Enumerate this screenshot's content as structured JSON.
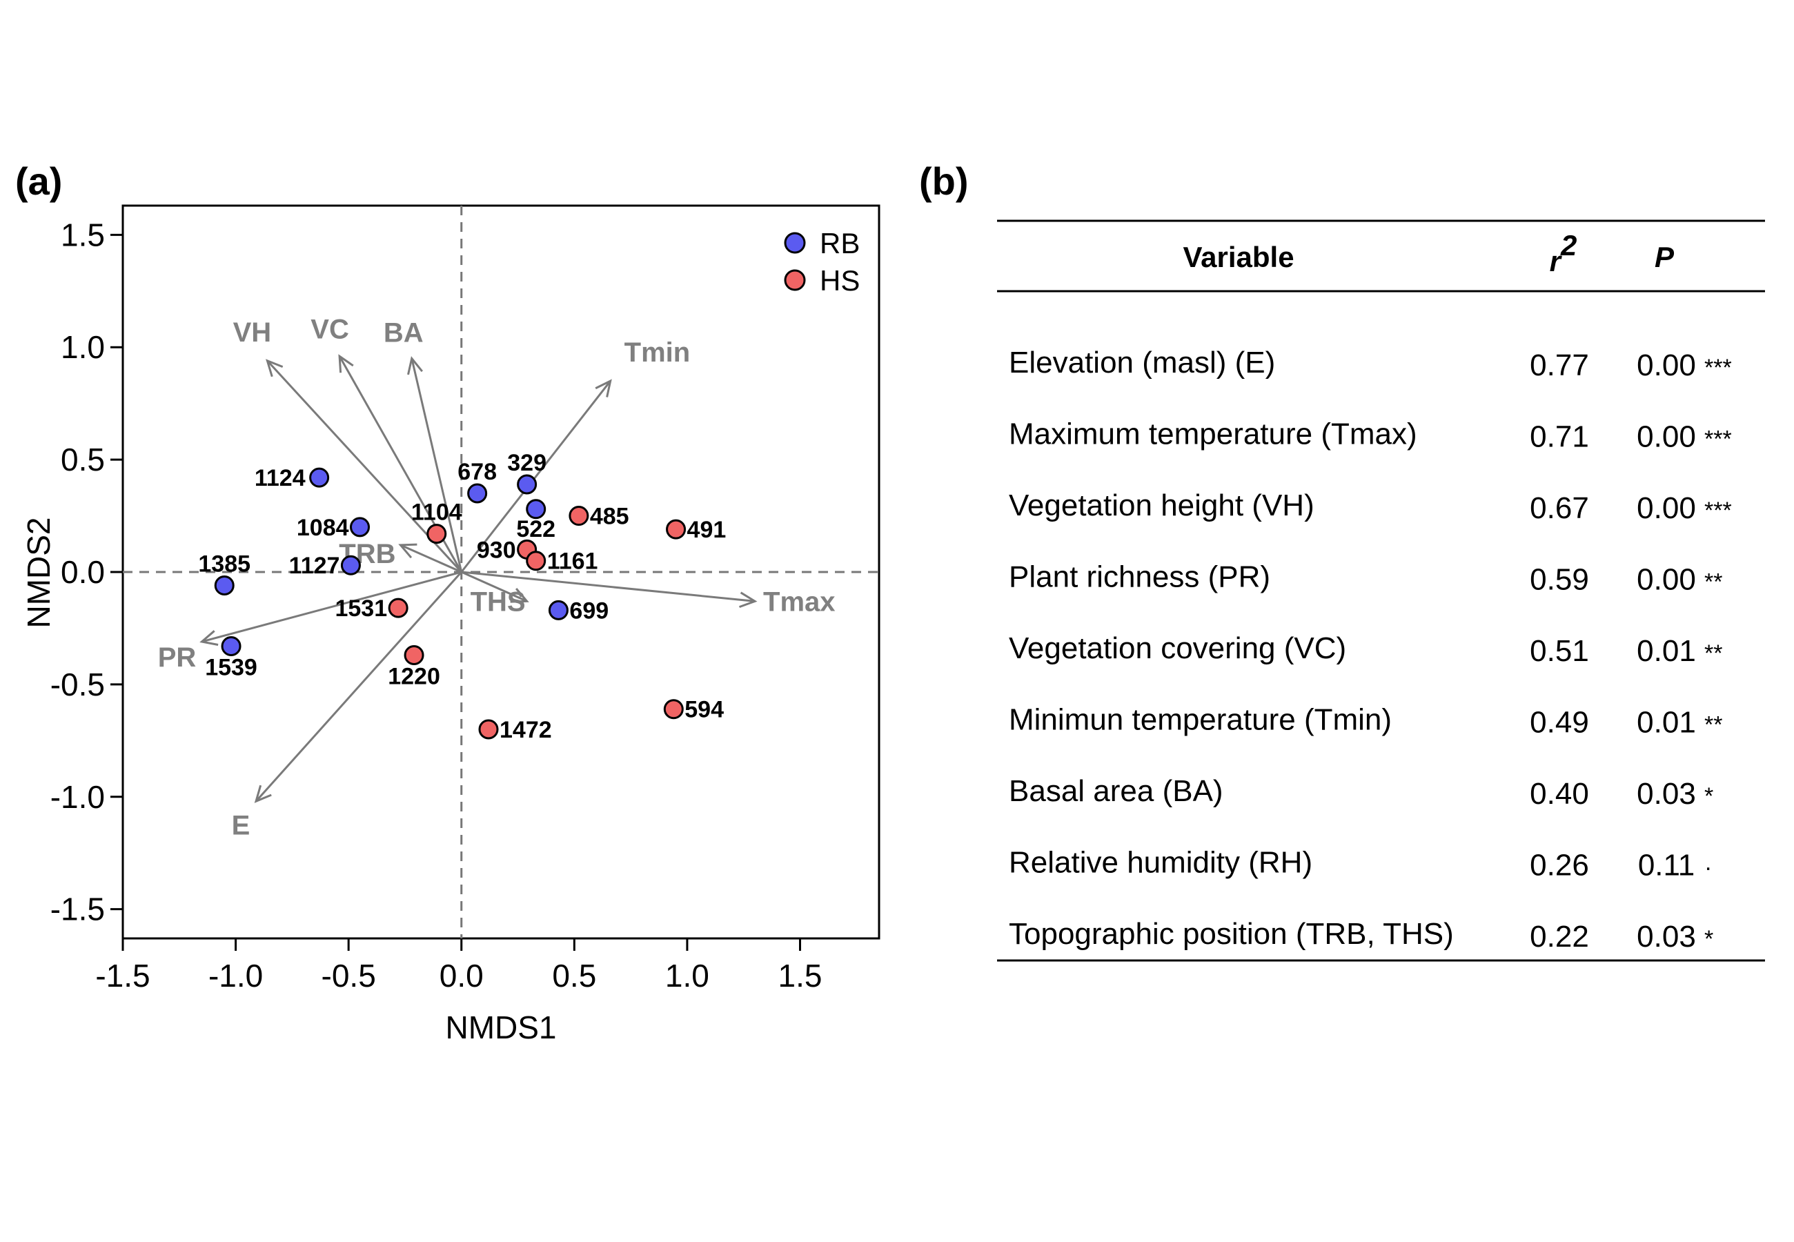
{
  "panel_a": {
    "label": "(a)",
    "chart_data": {
      "type": "scatter",
      "xlabel": "NMDS1",
      "ylabel": "NMDS2",
      "xlim": [
        -1.5,
        1.85
      ],
      "ylim": [
        -1.63,
        1.63
      ],
      "xticks": [
        "-1.5",
        "-1.0",
        "-0.5",
        "0.0",
        "0.5",
        "1.0",
        "1.5"
      ],
      "yticks": [
        "-1.5",
        "-1.0",
        "-0.5",
        "0.0",
        "0.5",
        "1.0",
        "1.5"
      ],
      "xtick_values": [
        -1.5,
        -1.0,
        -0.5,
        0.0,
        0.5,
        1.0,
        1.5
      ],
      "ytick_values": [
        -1.5,
        -1.0,
        -0.5,
        0.0,
        0.5,
        1.0,
        1.5
      ],
      "legend_position": "top-right",
      "series": [
        {
          "name": "RB",
          "color": "#5b5bf0",
          "points": [
            {
              "label": "1124",
              "x": -0.63,
              "y": 0.42
            },
            {
              "label": "1084",
              "x": -0.45,
              "y": 0.2
            },
            {
              "label": "1127",
              "x": -0.49,
              "y": 0.03
            },
            {
              "label": "1385",
              "x": -1.05,
              "y": -0.06
            },
            {
              "label": "1539",
              "x": -1.02,
              "y": -0.33
            },
            {
              "label": "678",
              "x": 0.07,
              "y": 0.35
            },
            {
              "label": "329",
              "x": 0.29,
              "y": 0.39
            },
            {
              "label": "522",
              "x": 0.33,
              "y": 0.28
            },
            {
              "label": "699",
              "x": 0.43,
              "y": -0.17
            }
          ]
        },
        {
          "name": "HS",
          "color": "#f06464",
          "points": [
            {
              "label": "1104",
              "x": -0.11,
              "y": 0.17
            },
            {
              "label": "1531",
              "x": -0.28,
              "y": -0.16
            },
            {
              "label": "1220",
              "x": -0.21,
              "y": -0.37
            },
            {
              "label": "930",
              "x": 0.29,
              "y": 0.1
            },
            {
              "label": "1161",
              "x": 0.33,
              "y": 0.05
            },
            {
              "label": "485",
              "x": 0.52,
              "y": 0.25
            },
            {
              "label": "491",
              "x": 0.95,
              "y": 0.19
            },
            {
              "label": "1472",
              "x": 0.12,
              "y": -0.7
            },
            {
              "label": "594",
              "x": 0.94,
              "y": -0.61
            }
          ]
        }
      ],
      "vectors": [
        {
          "name": "VH",
          "x": -0.86,
          "y": 0.94
        },
        {
          "name": "VC",
          "x": -0.54,
          "y": 0.96
        },
        {
          "name": "BA",
          "x": -0.22,
          "y": 0.95
        },
        {
          "name": "Tmin",
          "x": 0.66,
          "y": 0.85
        },
        {
          "name": "Tmax",
          "x": 1.3,
          "y": -0.13
        },
        {
          "name": "PR",
          "x": -1.15,
          "y": -0.31
        },
        {
          "name": "E",
          "x": -0.91,
          "y": -1.02
        },
        {
          "name": "TRB",
          "x": -0.27,
          "y": 0.12
        },
        {
          "name": "THS",
          "x": 0.29,
          "y": -0.13
        }
      ],
      "vector_color": "#7a7a7a"
    }
  },
  "panel_b": {
    "label": "(b)",
    "headers": {
      "variable": "Variable",
      "r2": "r",
      "r2_sup": "2",
      "p": "P"
    },
    "rows": [
      {
        "variable": "Elevation (masl) (E)",
        "r2": "0.77",
        "p": "0.00",
        "sig": "***"
      },
      {
        "variable": "Maximum temperature (Tmax)",
        "r2": "0.71",
        "p": "0.00",
        "sig": "***"
      },
      {
        "variable": "Vegetation height (VH)",
        "r2": "0.67",
        "p": "0.00",
        "sig": "***"
      },
      {
        "variable": "Plant richness (PR)",
        "r2": "0.59",
        "p": "0.00",
        "sig": "**"
      },
      {
        "variable": "Vegetation covering (VC)",
        "r2": "0.51",
        "p": "0.01",
        "sig": "**"
      },
      {
        "variable": "Minimun temperature (Tmin)",
        "r2": "0.49",
        "p": "0.01",
        "sig": "**"
      },
      {
        "variable": "Basal area (BA)",
        "r2": "0.40",
        "p": "0.03",
        "sig": "*"
      },
      {
        "variable": "Relative humidity (RH)",
        "r2": "0.26",
        "p": "0.11",
        "sig": "·"
      },
      {
        "variable": "Topographic position (TRB, THS)",
        "r2": "0.22",
        "p": "0.03",
        "sig": "*"
      }
    ]
  }
}
